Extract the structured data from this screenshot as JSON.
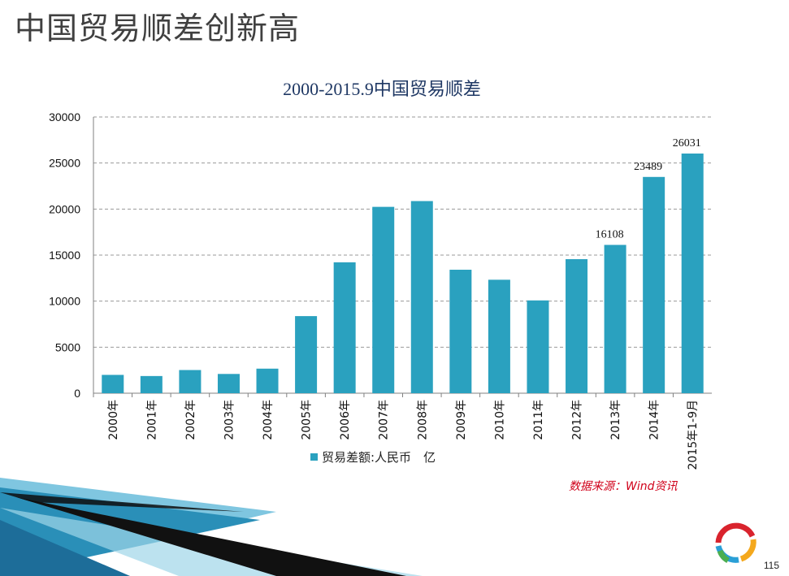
{
  "slide": {
    "title": "中国贸易顺差创新高",
    "source": "数据来源：Wind资讯",
    "page_number": "115"
  },
  "colors": {
    "bar": "#2aa1bf",
    "source_text": "#d0021b",
    "chart_title": "#1f3864"
  },
  "chart_data": {
    "type": "bar",
    "title": "2000-2015.9中国贸易顺差",
    "xlabel": "",
    "ylabel": "",
    "categories": [
      "2000年",
      "2001年",
      "2002年",
      "2003年",
      "2004年",
      "2005年",
      "2006年",
      "2007年",
      "2008年",
      "2009年",
      "2010年",
      "2011年",
      "2012年",
      "2013年",
      "2014年",
      "2015年1-9月"
    ],
    "series": [
      {
        "name": "贸易差额:人民币　亿",
        "values": [
          1990,
          1865,
          2517,
          2092,
          2667,
          8374,
          14218,
          20239,
          20868,
          13411,
          12323,
          10079,
          14558,
          16108,
          23489,
          26031
        ]
      }
    ],
    "data_labels": {
      "13": "16108",
      "14": "23489",
      "15": "26031"
    },
    "yticks": [
      "0",
      "5000",
      "10000",
      "15000",
      "20000",
      "25000",
      "30000"
    ],
    "ylim": [
      0,
      30000
    ],
    "grid": true,
    "legend_position": "bottom"
  }
}
